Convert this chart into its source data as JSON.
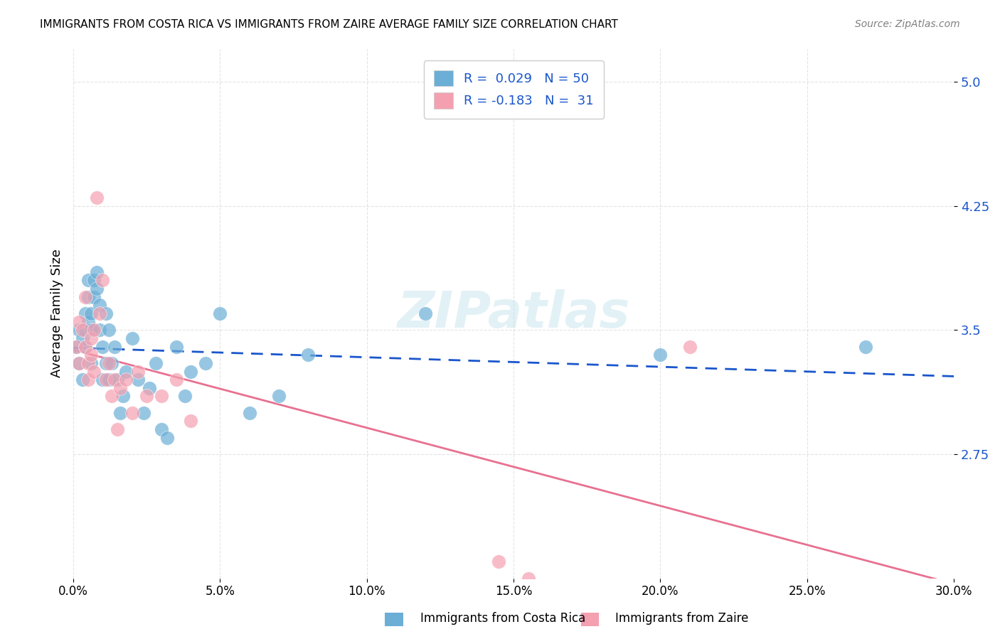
{
  "title": "IMMIGRANTS FROM COSTA RICA VS IMMIGRANTS FROM ZAIRE AVERAGE FAMILY SIZE CORRELATION CHART",
  "source": "Source: ZipAtlas.com",
  "ylabel": "Average Family Size",
  "xlim": [
    0.0,
    0.3
  ],
  "ylim": [
    2.0,
    5.2
  ],
  "yticks": [
    2.75,
    3.5,
    4.25,
    5.0
  ],
  "xticks": [
    0.0,
    0.05,
    0.1,
    0.15,
    0.2,
    0.25,
    0.3
  ],
  "xtick_labels": [
    "0.0%",
    "5.0%",
    "10.0%",
    "15.0%",
    "20.0%",
    "25.0%",
    "30.0%"
  ],
  "background_color": "#ffffff",
  "grid_color": "#dddddd",
  "watermark_text": "ZIPatlas",
  "color_blue": "#6baed6",
  "color_pink": "#f4a0b0",
  "line_blue": "#1a56cc",
  "line_pink": "#e87090",
  "legend_label1": "R =  0.029   N = 50",
  "legend_label2": "R = -0.183   N =  31",
  "bottom_label1": "Immigrants from Costa Rica",
  "bottom_label2": "Immigrants from Zaire",
  "costa_rica_x": [
    0.001,
    0.002,
    0.002,
    0.003,
    0.003,
    0.004,
    0.004,
    0.004,
    0.005,
    0.005,
    0.005,
    0.006,
    0.006,
    0.006,
    0.007,
    0.007,
    0.008,
    0.008,
    0.009,
    0.009,
    0.01,
    0.01,
    0.011,
    0.011,
    0.012,
    0.012,
    0.013,
    0.014,
    0.015,
    0.016,
    0.017,
    0.018,
    0.02,
    0.022,
    0.024,
    0.026,
    0.028,
    0.03,
    0.032,
    0.035,
    0.038,
    0.04,
    0.045,
    0.05,
    0.06,
    0.07,
    0.08,
    0.12,
    0.2,
    0.27
  ],
  "costa_rica_y": [
    3.4,
    3.3,
    3.5,
    3.45,
    3.2,
    3.5,
    3.4,
    3.6,
    3.55,
    3.7,
    3.8,
    3.6,
    3.5,
    3.3,
    3.7,
    3.8,
    3.85,
    3.75,
    3.65,
    3.5,
    3.4,
    3.2,
    3.6,
    3.3,
    3.5,
    3.2,
    3.3,
    3.4,
    3.2,
    3.0,
    3.1,
    3.25,
    3.45,
    3.2,
    3.0,
    3.15,
    3.3,
    2.9,
    2.85,
    3.4,
    3.1,
    3.25,
    3.3,
    3.6,
    3.0,
    3.1,
    3.35,
    3.6,
    3.35,
    3.4
  ],
  "zaire_x": [
    0.001,
    0.002,
    0.002,
    0.003,
    0.004,
    0.004,
    0.005,
    0.005,
    0.006,
    0.006,
    0.007,
    0.007,
    0.008,
    0.009,
    0.01,
    0.011,
    0.012,
    0.013,
    0.014,
    0.015,
    0.016,
    0.018,
    0.02,
    0.022,
    0.025,
    0.03,
    0.035,
    0.04,
    0.145,
    0.155,
    0.21
  ],
  "zaire_y": [
    3.4,
    3.3,
    3.55,
    3.5,
    3.7,
    3.4,
    3.3,
    3.2,
    3.45,
    3.35,
    3.25,
    3.5,
    4.3,
    3.6,
    3.8,
    3.2,
    3.3,
    3.1,
    3.2,
    2.9,
    3.15,
    3.2,
    3.0,
    3.25,
    3.1,
    3.1,
    3.2,
    2.95,
    2.1,
    2.0,
    3.4
  ]
}
